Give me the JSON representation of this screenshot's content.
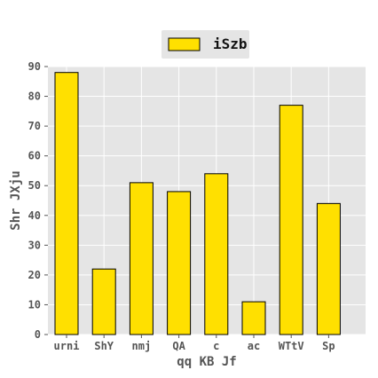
{
  "chart_data": {
    "type": "bar",
    "title": "",
    "xlabel": "qq  KB Jf",
    "ylabel": "Shr  JXju",
    "categories": [
      "urni",
      "ShY",
      "nmj",
      "QA",
      "c",
      "ac",
      "WTtV",
      "Sp"
    ],
    "series": [
      {
        "name": "iSzb",
        "values": [
          88,
          22,
          51,
          48,
          54,
          11,
          77,
          44
        ],
        "color": "#ffe000",
        "edge_color": "#000000"
      }
    ],
    "ylim": [
      0,
      90
    ],
    "yticks": [
      0,
      10,
      20,
      30,
      40,
      50,
      60,
      70,
      80,
      90
    ],
    "grid": true,
    "legend_position": "top-center",
    "style": {
      "plot_background": "#e5e5e5",
      "grid_color": "#ffffff",
      "tick_color": "#555555"
    }
  }
}
